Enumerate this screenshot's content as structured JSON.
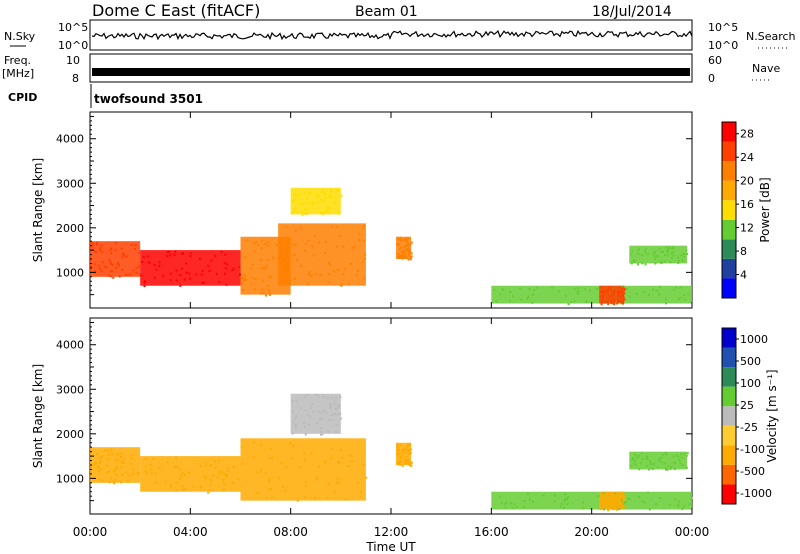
{
  "header": {
    "station": "Dome C East (fitACF)",
    "beam": "Beam 01",
    "date": "18/Jul/2014"
  },
  "strips": {
    "nsky_label": "N.Sky",
    "nsky_ticks": [
      "10^5",
      "10^0"
    ],
    "nsearch_label": "N.Search",
    "nsearch_ticks": [
      "10^5",
      "10^0"
    ],
    "freq_label_1": "Freq.",
    "freq_label_2": "[MHz]",
    "freq_ticks": [
      "10",
      "8"
    ],
    "nave_label": "Nave",
    "nave_ticks": [
      "60",
      "0"
    ],
    "cpid_label": "CPID",
    "cpid_value": "twofsound 3501"
  },
  "colors": {
    "power_scale": [
      "#0000ff",
      "#2040a0",
      "#2e8b57",
      "#66cc33",
      "#ffdd00",
      "#ffaa00",
      "#ff7f00",
      "#ff4000",
      "#ff0000"
    ],
    "velocity_scale": [
      "#ff0000",
      "#ff6600",
      "#ffaa00",
      "#ffcc33",
      "#bbbbbb",
      "#66cc33",
      "#2e8b57",
      "#2050b0",
      "#0000cc"
    ]
  },
  "chart_data": [
    {
      "type": "heatmap",
      "panel": "power",
      "ylabel": "Slant Range [km]",
      "yticks": [
        1000,
        2000,
        3000,
        4000
      ],
      "ylim": [
        200,
        4600
      ],
      "xlim": [
        0,
        24
      ],
      "colorbar": {
        "label": "Power [dB]",
        "ticks": [
          4,
          8,
          12,
          16,
          20,
          24,
          28
        ],
        "range": [
          0,
          30
        ]
      },
      "regions": [
        {
          "t0": 0.0,
          "t1": 2.0,
          "r0": 900,
          "r1": 1700,
          "value": 24
        },
        {
          "t0": 2.0,
          "t1": 6.0,
          "r0": 700,
          "r1": 1500,
          "value": 28
        },
        {
          "t0": 6.0,
          "t1": 8.0,
          "r0": 500,
          "r1": 1800,
          "value": 22
        },
        {
          "t0": 7.5,
          "t1": 11.0,
          "r0": 700,
          "r1": 2100,
          "value": 20
        },
        {
          "t0": 8.0,
          "t1": 10.0,
          "r0": 2300,
          "r1": 2900,
          "value": 14
        },
        {
          "t0": 12.2,
          "t1": 12.8,
          "r0": 1300,
          "r1": 1800,
          "value": 22
        },
        {
          "t0": 16.0,
          "t1": 24.0,
          "r0": 300,
          "r1": 700,
          "value": 10
        },
        {
          "t0": 20.3,
          "t1": 21.3,
          "r0": 300,
          "r1": 700,
          "value": 26
        },
        {
          "t0": 21.5,
          "t1": 23.8,
          "r0": 1200,
          "r1": 1600,
          "value": 10
        }
      ]
    },
    {
      "type": "heatmap",
      "panel": "velocity",
      "ylabel": "Slant Range [km]",
      "yticks": [
        1000,
        2000,
        3000,
        4000
      ],
      "ylim": [
        200,
        4600
      ],
      "xlim": [
        0,
        24
      ],
      "xlabel": "Time UT",
      "xticks": [
        "00:00",
        "04:00",
        "08:00",
        "12:00",
        "16:00",
        "20:00",
        "00:00"
      ],
      "colorbar": {
        "label": "Velocity [m s⁻¹]",
        "ticks": [
          1000,
          500,
          100,
          25,
          -25,
          -100,
          -500,
          -1000
        ]
      },
      "regions": [
        {
          "t0": 0.0,
          "t1": 2.0,
          "r0": 900,
          "r1": 1700,
          "value": -100
        },
        {
          "t0": 2.0,
          "t1": 6.0,
          "r0": 700,
          "r1": 1500,
          "value": -150
        },
        {
          "t0": 6.0,
          "t1": 11.0,
          "r0": 500,
          "r1": 1900,
          "value": -200
        },
        {
          "t0": 8.0,
          "t1": 10.0,
          "r0": 2000,
          "r1": 2900,
          "value": 0
        },
        {
          "t0": 12.2,
          "t1": 12.8,
          "r0": 1300,
          "r1": 1800,
          "value": -100
        },
        {
          "t0": 16.0,
          "t1": 24.0,
          "r0": 300,
          "r1": 700,
          "value": 60
        },
        {
          "t0": 20.3,
          "t1": 21.3,
          "r0": 300,
          "r1": 700,
          "value": -200
        },
        {
          "t0": 21.5,
          "t1": 23.8,
          "r0": 1200,
          "r1": 1600,
          "value": 60
        }
      ]
    }
  ]
}
